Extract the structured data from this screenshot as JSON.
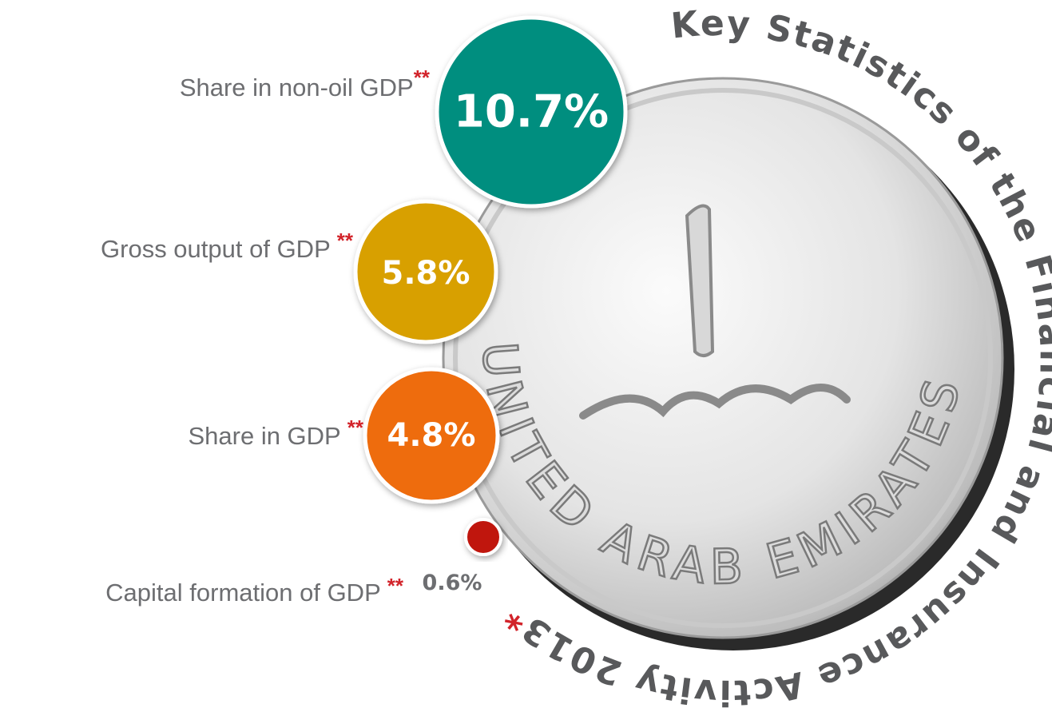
{
  "title": "Key Statistics of the Financial and Insurance Activity 2013",
  "title_mark": "*",
  "coin": {
    "inscription": "UNITED ARAB EMIRATES"
  },
  "items": [
    {
      "label": "Share in non-oil GDP",
      "mark": "**",
      "value": "10.7%"
    },
    {
      "label": "Gross output of GDP",
      "mark": "**",
      "value": "5.8%"
    },
    {
      "label": "Share in GDP",
      "mark": "**",
      "value": "4.8%"
    },
    {
      "label": "Capital formation of GDP",
      "mark": "**",
      "value": "0.6%"
    }
  ]
}
